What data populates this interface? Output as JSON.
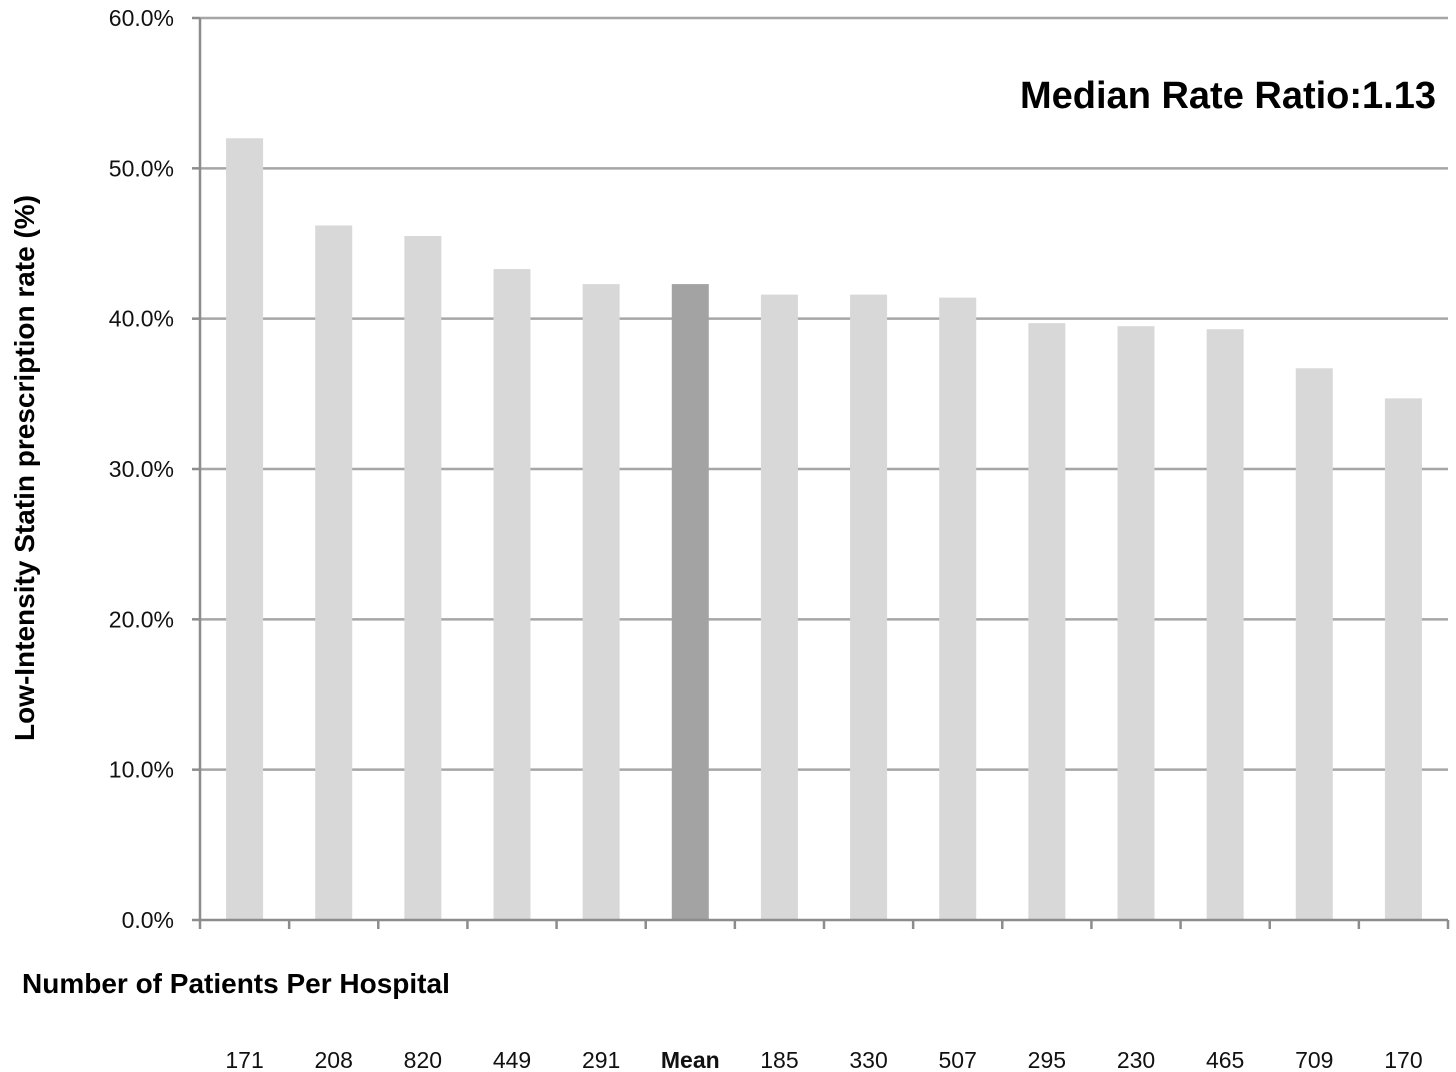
{
  "chart_data": {
    "type": "bar",
    "title": "",
    "annotation": "Median Rate Ratio:1.13",
    "ylabel": "Low-Intensity Statin prescription rate (%)",
    "xlabel": "Number of Patients Per Hospital",
    "ylim": [
      0,
      60
    ],
    "yticks": [
      "0.0%",
      "10.0%",
      "20.0%",
      "30.0%",
      "40.0%",
      "50.0%",
      "60.0%"
    ],
    "grid": true,
    "categories": [
      "171",
      "208",
      "820",
      "449",
      "291",
      "Mean",
      "185",
      "330",
      "507",
      "295",
      "230",
      "465",
      "709",
      "170"
    ],
    "values": [
      52.0,
      46.2,
      45.5,
      43.3,
      42.3,
      42.3,
      41.6,
      41.6,
      41.4,
      39.7,
      39.5,
      39.3,
      36.7,
      34.7
    ],
    "colors": {
      "bar": "#d8d8d8",
      "highlight": "#a3a3a3",
      "gridline": "#a6a6a6",
      "axis": "#8c8c8c"
    },
    "highlight_category": "Mean"
  }
}
